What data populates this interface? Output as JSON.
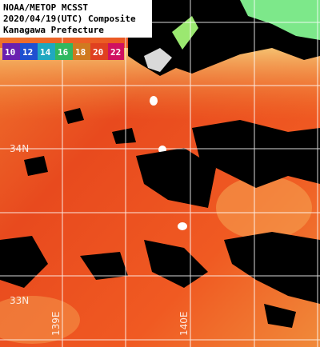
{
  "header": {
    "lines": [
      "NOAA/METOP MCSST",
      "2020/04/19(UTC) Composite",
      "Kanagawa Prefecture"
    ]
  },
  "colorbar": {
    "labels": [
      10,
      12,
      14,
      16,
      18,
      20,
      22
    ]
  },
  "grid_labels": {
    "lat": [
      "34N",
      "33N"
    ],
    "lon": [
      "139E",
      "140E"
    ]
  }
}
